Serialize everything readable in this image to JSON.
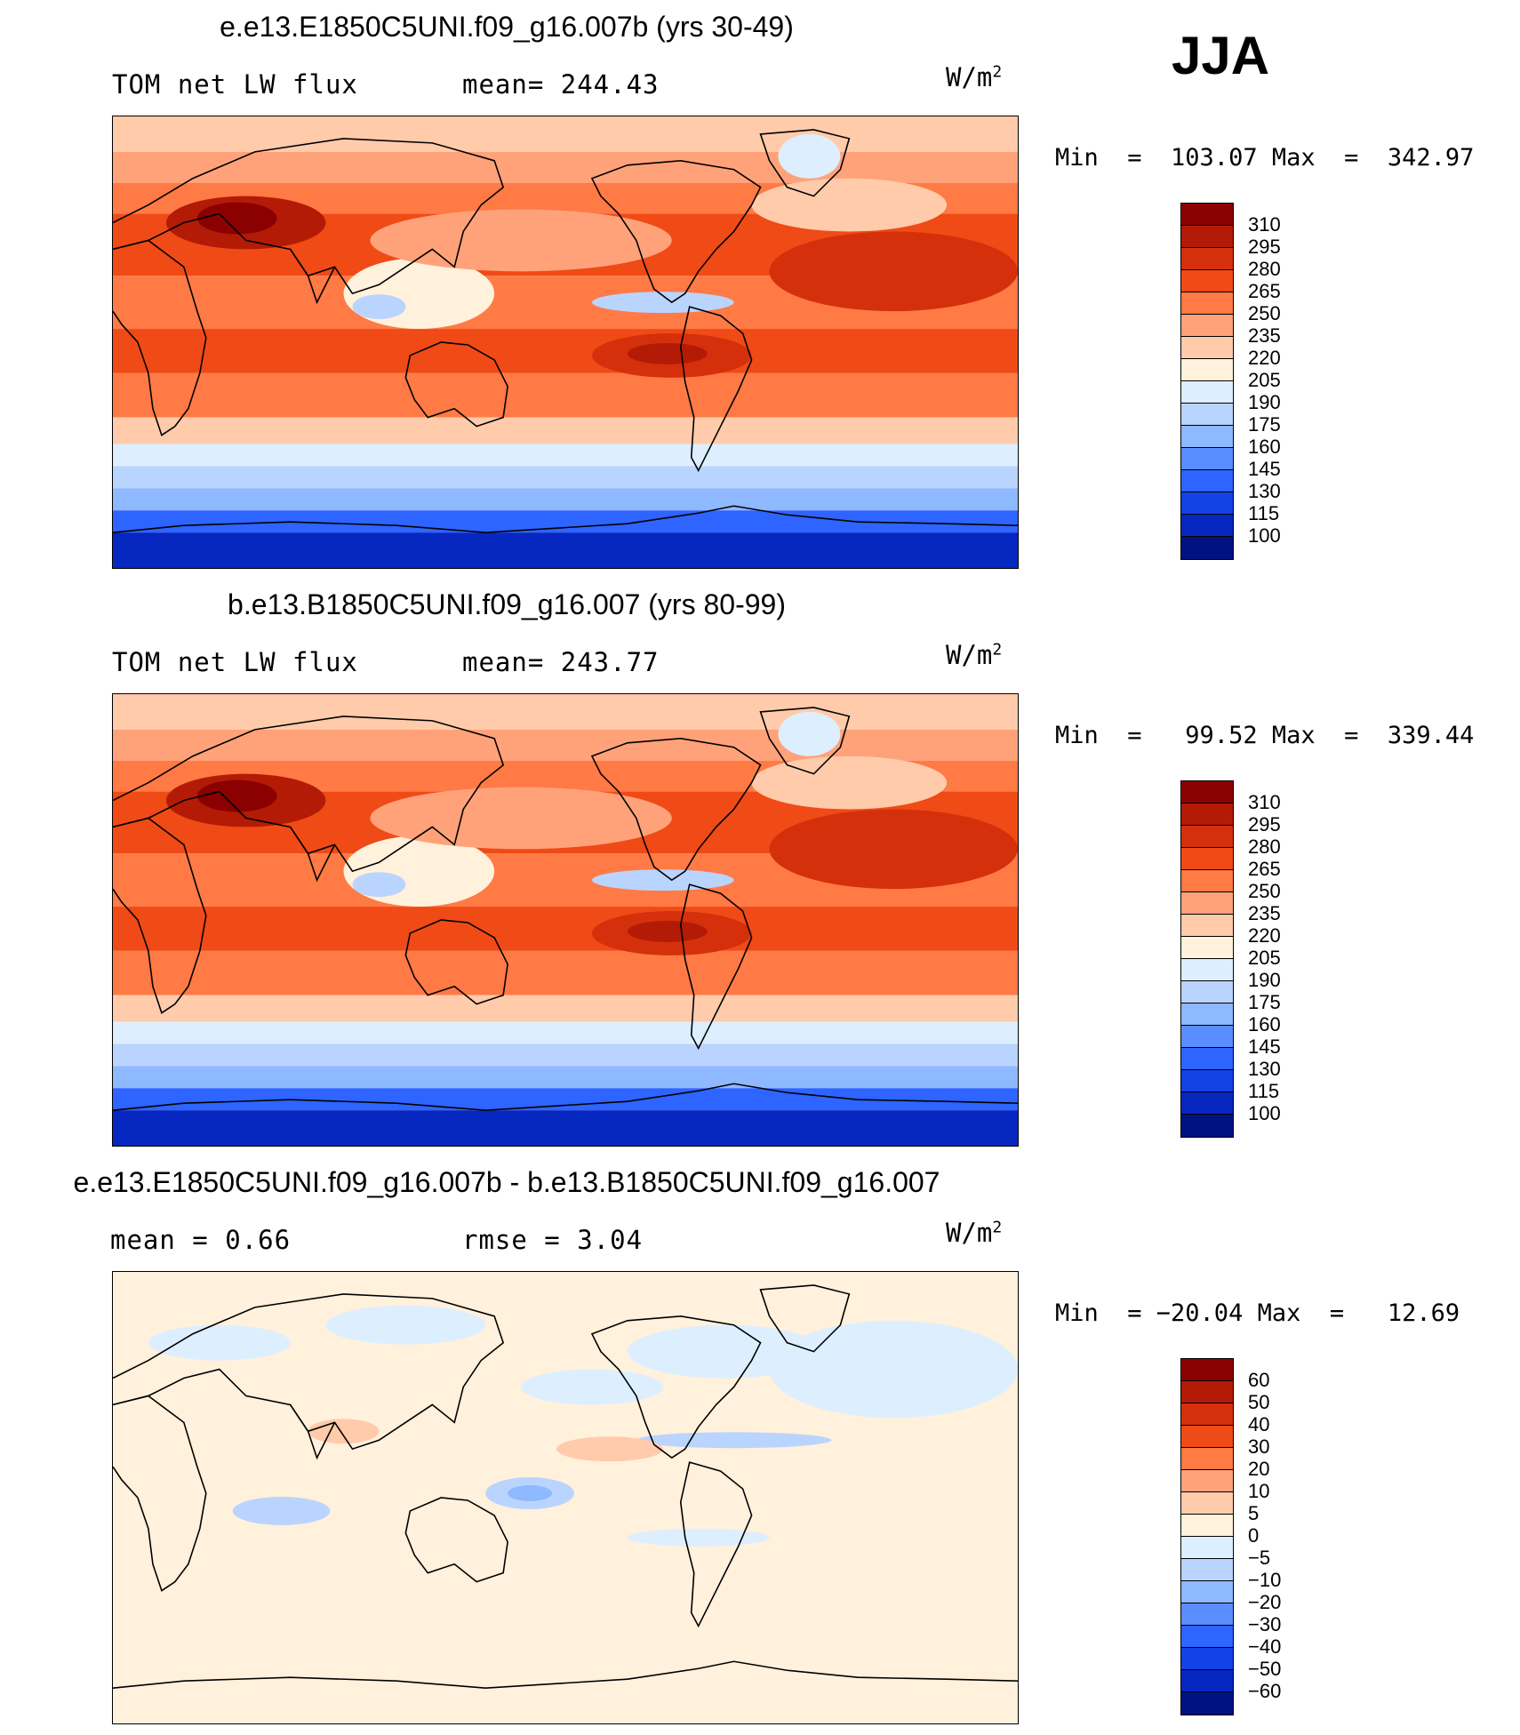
{
  "season": "JJA",
  "panels": [
    {
      "title": "e.e13.E1850C5UNI.f09_g16.007b (yrs 30-49)",
      "left_label": "TOM net LW flux",
      "stat_label": "mean= 244.43",
      "units": "W/m",
      "units_exp": "2",
      "minmax": "Min  =  103.07 Max  =  342.97",
      "colorbar_labels": [
        "310",
        "295",
        "280",
        "265",
        "250",
        "235",
        "220",
        "205",
        "190",
        "175",
        "160",
        "145",
        "130",
        "115",
        "100"
      ],
      "colorbar_colors": [
        "#8b0000",
        "#b31b06",
        "#d5300c",
        "#f04a16",
        "#ff7a45",
        "#ffa27a",
        "#ffcbaa",
        "#fff1dc",
        "#ddeeff",
        "#b9d4ff",
        "#8eb8ff",
        "#5a8dff",
        "#2e64ff",
        "#1143e6",
        "#0627c0",
        "#001281"
      ],
      "map_pattern": "abs"
    },
    {
      "title": "b.e13.B1850C5UNI.f09_g16.007 (yrs 80-99)",
      "left_label": "TOM net LW flux",
      "stat_label": "mean= 243.77",
      "units": "W/m",
      "units_exp": "2",
      "minmax": "Min  =   99.52 Max  =  339.44",
      "colorbar_labels": [
        "310",
        "295",
        "280",
        "265",
        "250",
        "235",
        "220",
        "205",
        "190",
        "175",
        "160",
        "145",
        "130",
        "115",
        "100"
      ],
      "colorbar_colors": [
        "#8b0000",
        "#b31b06",
        "#d5300c",
        "#f04a16",
        "#ff7a45",
        "#ffa27a",
        "#ffcbaa",
        "#fff1dc",
        "#ddeeff",
        "#b9d4ff",
        "#8eb8ff",
        "#5a8dff",
        "#2e64ff",
        "#1143e6",
        "#0627c0",
        "#001281"
      ],
      "map_pattern": "abs"
    },
    {
      "title": "e.e13.E1850C5UNI.f09_g16.007b - b.e13.B1850C5UNI.f09_g16.007",
      "left_label": "mean =    0.66",
      "stat_label": "rmse =    3.04",
      "units": "W/m",
      "units_exp": "2",
      "minmax": "Min  = −20.04 Max  =   12.69",
      "colorbar_labels": [
        "60",
        "50",
        "40",
        "30",
        "20",
        "10",
        "5",
        "0",
        "−5",
        "−10",
        "−20",
        "−30",
        "−40",
        "−50",
        "−60"
      ],
      "colorbar_colors": [
        "#8b0000",
        "#b31b06",
        "#d5300c",
        "#f04a16",
        "#ff7a45",
        "#ffa27a",
        "#ffcbaa",
        "#fff1dc",
        "#ddeeff",
        "#b9d4ff",
        "#8eb8ff",
        "#5a8dff",
        "#2e64ff",
        "#1143e6",
        "#0627c0",
        "#001281"
      ],
      "map_pattern": "diff"
    }
  ]
}
